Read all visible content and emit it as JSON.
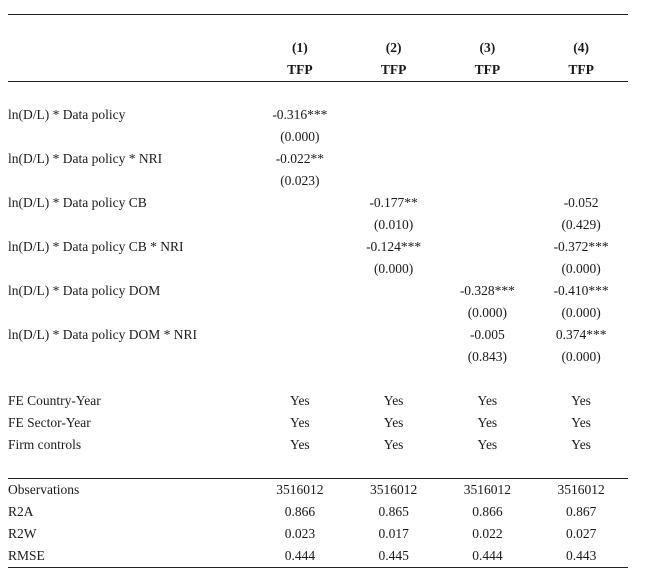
{
  "columns": [
    {
      "number": "(1)",
      "label": "TFP"
    },
    {
      "number": "(2)",
      "label": "TFP"
    },
    {
      "number": "(3)",
      "label": "TFP"
    },
    {
      "number": "(4)",
      "label": "TFP"
    }
  ],
  "coef_rows": [
    {
      "label": "ln(D/L) * Data policy",
      "coef": [
        "-0.316***",
        "",
        "",
        ""
      ],
      "pval": [
        "(0.000)",
        "",
        "",
        ""
      ]
    },
    {
      "label": "ln(D/L) * Data policy * NRI",
      "coef": [
        "-0.022**",
        "",
        "",
        ""
      ],
      "pval": [
        "(0.023)",
        "",
        "",
        ""
      ]
    },
    {
      "label": "ln(D/L) * Data policy CB",
      "coef": [
        "",
        "-0.177**",
        "",
        "-0.052"
      ],
      "pval": [
        "",
        "(0.010)",
        "",
        "(0.429)"
      ]
    },
    {
      "label": "ln(D/L) * Data policy CB * NRI",
      "coef": [
        "",
        "-0.124***",
        "",
        "-0.372***"
      ],
      "pval": [
        "",
        "(0.000)",
        "",
        "(0.000)"
      ]
    },
    {
      "label": "ln(D/L) * Data policy DOM",
      "coef": [
        "",
        "",
        "-0.328***",
        "-0.410***"
      ],
      "pval": [
        "",
        "",
        "(0.000)",
        "(0.000)"
      ]
    },
    {
      "label": "ln(D/L) * Data policy DOM * NRI",
      "coef": [
        "",
        "",
        "-0.005",
        "0.374***"
      ],
      "pval": [
        "",
        "",
        "(0.843)",
        "(0.000)"
      ]
    }
  ],
  "fe_rows": [
    {
      "label": "FE Country-Year",
      "values": [
        "Yes",
        "Yes",
        "Yes",
        "Yes"
      ]
    },
    {
      "label": "FE Sector-Year",
      "values": [
        "Yes",
        "Yes",
        "Yes",
        "Yes"
      ]
    },
    {
      "label": "Firm controls",
      "values": [
        "Yes",
        "Yes",
        "Yes",
        "Yes"
      ]
    }
  ],
  "stat_rows": [
    {
      "label": "Observations",
      "values": [
        "3516012",
        "3516012",
        "3516012",
        "3516012"
      ]
    },
    {
      "label": "R2A",
      "values": [
        "0.866",
        "0.865",
        "0.866",
        "0.867"
      ]
    },
    {
      "label": "R2W",
      "values": [
        "0.023",
        "0.017",
        "0.022",
        "0.027"
      ]
    },
    {
      "label": "RMSE",
      "values": [
        "0.444",
        "0.445",
        "0.444",
        "0.443"
      ]
    }
  ]
}
